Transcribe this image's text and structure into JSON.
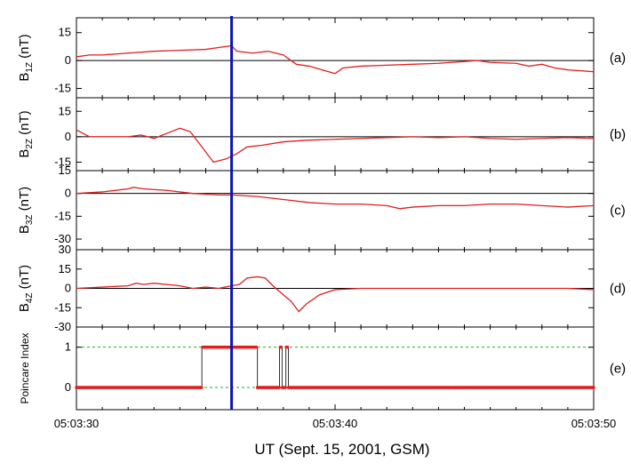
{
  "chart_data": {
    "type": "line",
    "x_label": "UT (Sept. 15, 2001, GSM)",
    "x_ticks": [
      {
        "t": 0,
        "label": "05:03:30"
      },
      {
        "t": 10,
        "label": "05:03:40"
      },
      {
        "t": 20,
        "label": "05:03:50"
      }
    ],
    "x_range_seconds": [
      0,
      20
    ],
    "x_start": "05:03:30",
    "marker_time": 6.0,
    "marker_color": "#0a14b4",
    "series_color": "#e02020",
    "panels": [
      {
        "id": "a",
        "panel_label": "(a)",
        "ylabel_main": "B",
        "ylabel_sub": "1Z",
        "ylabel_unit": " (nT)",
        "ylim": [
          -20,
          23
        ],
        "ticks": [
          15,
          0,
          -15
        ],
        "tick_labels": [
          "15",
          "0",
          "-15"
        ],
        "zero_line": true,
        "points": [
          [
            0,
            2
          ],
          [
            0.5,
            3
          ],
          [
            1,
            3
          ],
          [
            2,
            4
          ],
          [
            3,
            5
          ],
          [
            4,
            5.5
          ],
          [
            5,
            6
          ],
          [
            5.5,
            7
          ],
          [
            6,
            8
          ],
          [
            6.2,
            5
          ],
          [
            6.8,
            4
          ],
          [
            7.4,
            5
          ],
          [
            8,
            3
          ],
          [
            8.5,
            -2
          ],
          [
            9,
            -3
          ],
          [
            9.5,
            -5
          ],
          [
            10,
            -7
          ],
          [
            10.3,
            -4
          ],
          [
            11,
            -3
          ],
          [
            12,
            -2.5
          ],
          [
            13,
            -2
          ],
          [
            14,
            -1.5
          ],
          [
            15,
            -0.5
          ],
          [
            15.5,
            0
          ],
          [
            16,
            -1
          ],
          [
            17,
            -1.5
          ],
          [
            17.5,
            -3
          ],
          [
            18,
            -2
          ],
          [
            18.5,
            -4
          ],
          [
            19,
            -5
          ],
          [
            20,
            -6
          ]
        ]
      },
      {
        "id": "b",
        "panel_label": "(b)",
        "ylabel_main": "B",
        "ylabel_sub": "2Z",
        "ylabel_unit": " (nT)",
        "ylim": [
          -20,
          23
        ],
        "ticks": [
          15,
          0,
          -15
        ],
        "tick_labels": [
          "15",
          "0",
          "-15"
        ],
        "zero_line": true,
        "points": [
          [
            0,
            4
          ],
          [
            0.5,
            0
          ],
          [
            1,
            0
          ],
          [
            2,
            0
          ],
          [
            2.5,
            1
          ],
          [
            3,
            -1
          ],
          [
            3.5,
            2
          ],
          [
            4,
            5
          ],
          [
            4.4,
            3
          ],
          [
            4.8,
            -5
          ],
          [
            5.3,
            -15
          ],
          [
            5.8,
            -13
          ],
          [
            6.2,
            -10
          ],
          [
            6.6,
            -6
          ],
          [
            7.2,
            -5
          ],
          [
            8,
            -3
          ],
          [
            9,
            -2
          ],
          [
            10,
            -1.5
          ],
          [
            11,
            -1
          ],
          [
            12,
            -0.5
          ],
          [
            13,
            0
          ],
          [
            14,
            -0.5
          ],
          [
            15,
            0
          ],
          [
            16,
            -1
          ],
          [
            17,
            -1.5
          ],
          [
            18,
            -1
          ],
          [
            19,
            -0.5
          ],
          [
            20,
            -1
          ]
        ]
      },
      {
        "id": "c",
        "panel_label": "(c)",
        "ylabel_main": "B",
        "ylabel_sub": "3Z",
        "ylabel_unit": " (nT)",
        "ylim": [
          -37,
          15
        ],
        "ticks": [
          15,
          0,
          -15,
          -30
        ],
        "tick_labels": [
          "15",
          "0",
          "-15",
          "-30"
        ],
        "zero_line": true,
        "points": [
          [
            0,
            0
          ],
          [
            1,
            1
          ],
          [
            2,
            3
          ],
          [
            2.2,
            4
          ],
          [
            2.6,
            3
          ],
          [
            3.5,
            2
          ],
          [
            4.5,
            0
          ],
          [
            5.5,
            -1
          ],
          [
            6,
            -1
          ],
          [
            7,
            -2
          ],
          [
            8,
            -4
          ],
          [
            9,
            -6
          ],
          [
            10,
            -7
          ],
          [
            11,
            -7
          ],
          [
            12,
            -8
          ],
          [
            12.5,
            -10
          ],
          [
            13,
            -9
          ],
          [
            14,
            -8
          ],
          [
            15,
            -8
          ],
          [
            16,
            -7
          ],
          [
            17,
            -7
          ],
          [
            18,
            -8
          ],
          [
            19,
            -9
          ],
          [
            20,
            -8
          ]
        ]
      },
      {
        "id": "d",
        "panel_label": "(d)",
        "ylabel_main": "B",
        "ylabel_sub": "4Z",
        "ylabel_unit": " (nT)",
        "ylim": [
          -30,
          30
        ],
        "ticks": [
          30,
          15,
          0,
          -15,
          -30
        ],
        "tick_labels": [
          "30",
          "15",
          "0",
          "-15",
          "-30"
        ],
        "zero_line": true,
        "points": [
          [
            0,
            0
          ],
          [
            1,
            1
          ],
          [
            2,
            2
          ],
          [
            2.3,
            4
          ],
          [
            2.6,
            3
          ],
          [
            3,
            4
          ],
          [
            4,
            2
          ],
          [
            4.5,
            0
          ],
          [
            5,
            1
          ],
          [
            5.5,
            0
          ],
          [
            6,
            2
          ],
          [
            6.3,
            3
          ],
          [
            6.6,
            8
          ],
          [
            7,
            9
          ],
          [
            7.3,
            8
          ],
          [
            7.6,
            2
          ],
          [
            8,
            -5
          ],
          [
            8.3,
            -10
          ],
          [
            8.6,
            -18
          ],
          [
            8.9,
            -12
          ],
          [
            9.4,
            -5
          ],
          [
            10,
            -1
          ],
          [
            11,
            0
          ],
          [
            12,
            0
          ],
          [
            13,
            0
          ],
          [
            14,
            0
          ],
          [
            15,
            0
          ],
          [
            16,
            0
          ],
          [
            17,
            0
          ],
          [
            18,
            0
          ],
          [
            19,
            0
          ],
          [
            20,
            -1
          ]
        ]
      },
      {
        "id": "e",
        "panel_label": "(e)",
        "ylabel_main": "Poincare Index",
        "ylabel_sub": "",
        "ylabel_unit": "",
        "ylim": [
          -0.55,
          1.5
        ],
        "ticks": [
          1,
          0
        ],
        "tick_labels": [
          "1",
          "0"
        ],
        "zero_line": false,
        "guide_levels": [
          1,
          0
        ],
        "guide_color": "#19b419",
        "points": [
          [
            0,
            0
          ],
          [
            4.85,
            0
          ],
          [
            4.85,
            1
          ],
          [
            7.0,
            1
          ],
          [
            7.0,
            0
          ],
          [
            7.85,
            0
          ],
          [
            7.85,
            1
          ],
          [
            7.95,
            1
          ],
          [
            7.95,
            0
          ],
          [
            8.1,
            0
          ],
          [
            8.1,
            1
          ],
          [
            8.2,
            1
          ],
          [
            8.2,
            0
          ],
          [
            20,
            0
          ]
        ]
      }
    ]
  }
}
